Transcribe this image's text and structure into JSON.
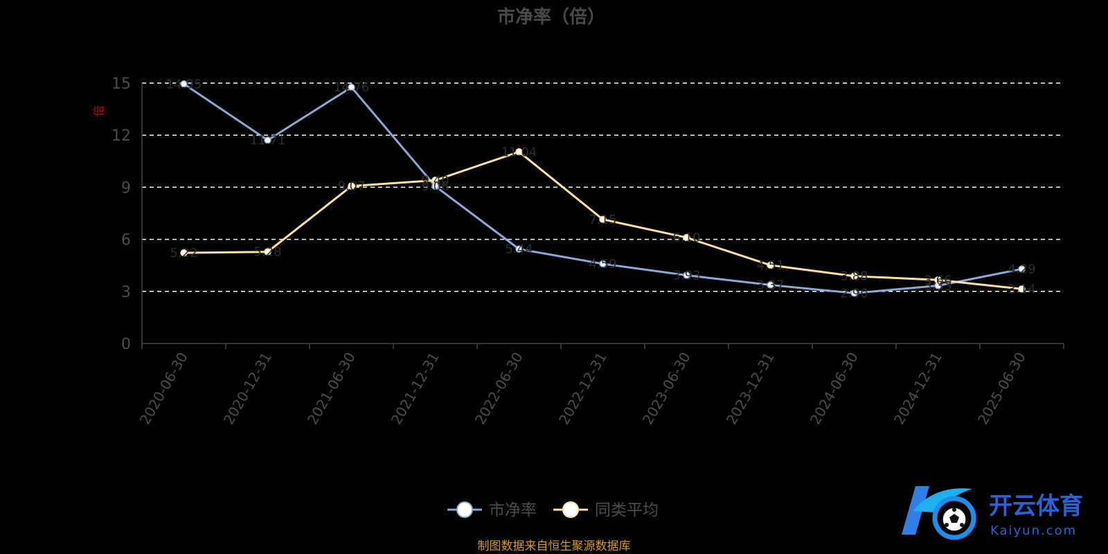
{
  "chart_data": {
    "type": "line",
    "title": "市净率（倍）",
    "ylabel": "倍",
    "categories": [
      "2020-06-30",
      "2020-12-31",
      "2021-06-30",
      "2021-12-31",
      "2022-06-30",
      "2022-12-31",
      "2023-06-30",
      "2023-12-31",
      "2024-06-30",
      "2024-12-31",
      "2025-06-30"
    ],
    "series": [
      {
        "name": "市净率",
        "color": "#8fa8d8",
        "values": [
          14.95,
          11.71,
          14.76,
          9.06,
          5.44,
          4.59,
          3.93,
          3.37,
          2.9,
          3.33,
          4.29
        ]
      },
      {
        "name": "同类平均",
        "color": "#ffe0a0",
        "values": [
          5.22,
          5.28,
          9.07,
          9.4,
          11.04,
          7.15,
          6.1,
          4.51,
          3.88,
          3.66,
          3.14
        ]
      }
    ],
    "ylim": [
      0,
      15
    ],
    "yticks": [
      "0",
      "3",
      "6",
      "9",
      "12",
      "15"
    ],
    "grid": true,
    "legend_position": "bottom-center"
  },
  "source_note": "制图数据来自恒生聚源数据库",
  "watermark": {
    "text": "开云体育",
    "sub": "Kaiyun.com"
  }
}
